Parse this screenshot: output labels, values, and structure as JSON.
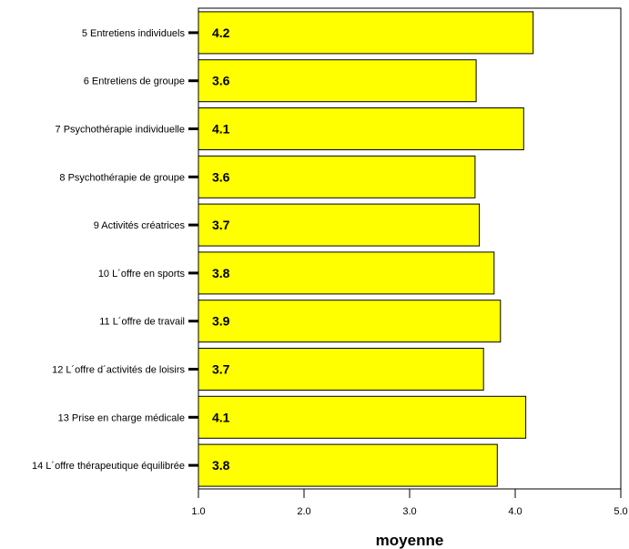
{
  "colors": {
    "bar": "#ffff00",
    "bar_stroke": "#000000",
    "axis": "#000000",
    "background": "#ffffff"
  },
  "chart_data": {
    "type": "bar",
    "orientation": "horizontal",
    "categories": [
      "5 Entretiens individuels",
      "6 Entretiens de groupe",
      "7 Psychothérapie individuelle",
      "8 Psychothérapie de groupe",
      "9 Activités créatrices",
      "10 L´offre en sports",
      "11 L´offre de travail",
      "12 L´offre d´activités de loisirs",
      "13 Prise en charge médicale",
      "14 L´offre thérapeutique équilibrée"
    ],
    "values": [
      4.17,
      3.63,
      4.08,
      3.62,
      3.66,
      3.8,
      3.86,
      3.7,
      4.1,
      3.83
    ],
    "value_labels": [
      "4.2",
      "3.6",
      "4.1",
      "3.6",
      "3.7",
      "3.8",
      "3.9",
      "3.7",
      "4.1",
      "3.8"
    ],
    "xlim": [
      1.0,
      5.0
    ],
    "xticks": [
      1.0,
      2.0,
      3.0,
      4.0,
      5.0
    ],
    "xtick_labels": [
      "1.0",
      "2.0",
      "3.0",
      "4.0",
      "5.0"
    ],
    "xlabel": "moyenne",
    "grid": false,
    "legend": "none"
  }
}
